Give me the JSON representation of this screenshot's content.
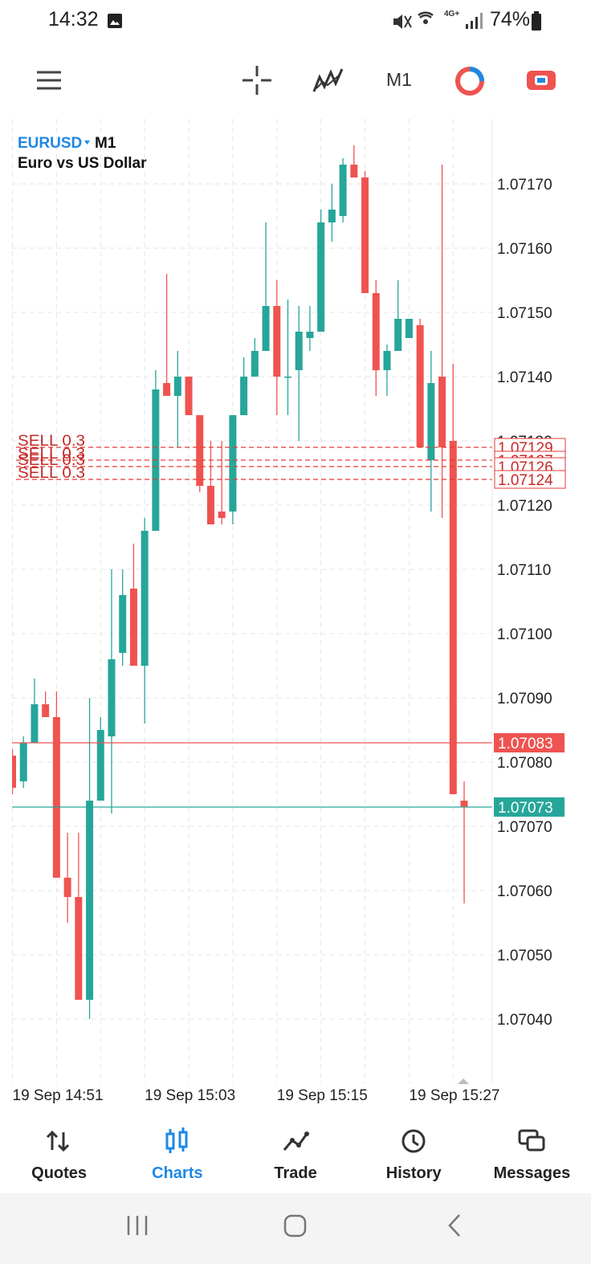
{
  "status_bar": {
    "time": "14:32",
    "network": "4G+",
    "battery": "74%"
  },
  "toolbar": {
    "timeframe": "M1"
  },
  "chart_data": {
    "type": "candlestick",
    "symbol": "EURUSD",
    "timeframe": "M1",
    "description": "Euro vs US Dollar",
    "categories": [
      "19 Sep 14:51",
      null,
      null,
      null,
      null,
      null,
      null,
      null,
      null,
      null,
      null,
      null,
      "19 Sep 15:03",
      null,
      null,
      null,
      null,
      null,
      null,
      null,
      null,
      null,
      null,
      null,
      "19 Sep 15:15",
      null,
      null,
      null,
      null,
      null,
      null,
      null,
      null,
      null,
      null,
      null,
      "19 Sep 15:27",
      null,
      null,
      null,
      null,
      null
    ],
    "open": [
      1.07081,
      1.07077,
      1.07083,
      1.07089,
      1.07087,
      1.07062,
      1.07059,
      1.07043,
      1.07074,
      1.07084,
      1.07097,
      1.07107,
      1.07095,
      1.07116,
      1.07139,
      1.07137,
      1.0714,
      1.07134,
      1.07123,
      1.07119,
      1.07119,
      1.07134,
      1.0714,
      1.07144,
      1.07151,
      1.0714,
      1.07141,
      1.07146,
      1.07147,
      1.07164,
      1.07165,
      1.07173,
      1.07171,
      1.07153,
      1.07141,
      1.07144,
      1.07146,
      1.07148,
      1.07127,
      1.0714,
      1.0713,
      1.07074
    ],
    "high": [
      1.07082,
      1.07084,
      1.07093,
      1.07091,
      1.07091,
      1.07069,
      1.07069,
      1.0709,
      1.07087,
      1.0711,
      1.0711,
      1.07114,
      1.07118,
      1.07141,
      1.07156,
      1.07144,
      1.0714,
      1.07134,
      1.0713,
      1.0713,
      1.07134,
      1.07143,
      1.07146,
      1.07164,
      1.07155,
      1.07152,
      1.07151,
      1.07151,
      1.07166,
      1.0717,
      1.07174,
      1.07176,
      1.07172,
      1.07155,
      1.07145,
      1.07155,
      1.07149,
      1.07149,
      1.07144,
      1.07173,
      1.07142,
      1.07077
    ],
    "low": [
      1.07075,
      1.07076,
      1.07083,
      1.07087,
      1.07062,
      1.07055,
      1.07043,
      1.0704,
      1.07074,
      1.07072,
      1.07095,
      1.07095,
      1.07086,
      1.07116,
      1.07137,
      1.07129,
      1.07134,
      1.07122,
      1.07117,
      1.07117,
      1.07117,
      1.07134,
      1.0714,
      1.07144,
      1.07134,
      1.07134,
      1.0713,
      1.07144,
      1.07147,
      1.07161,
      1.07164,
      1.07171,
      1.07153,
      1.07137,
      1.07137,
      1.07144,
      1.07146,
      1.07129,
      1.07119,
      1.07118,
      1.07075,
      1.07058
    ],
    "close": [
      1.07076,
      1.07083,
      1.07089,
      1.07087,
      1.07062,
      1.07059,
      1.07043,
      1.07074,
      1.07085,
      1.07096,
      1.07106,
      1.07095,
      1.07116,
      1.07138,
      1.07137,
      1.0714,
      1.07134,
      1.07123,
      1.07117,
      1.07118,
      1.07134,
      1.0714,
      1.07144,
      1.07151,
      1.0714,
      1.0714,
      1.07147,
      1.07147,
      1.07164,
      1.07166,
      1.07173,
      1.07171,
      1.07153,
      1.07141,
      1.07144,
      1.07149,
      1.07149,
      1.07129,
      1.07139,
      1.07129,
      1.07075,
      1.07073
    ],
    "up_color": "#26a69a",
    "down_color": "#ef5350",
    "ylim": [
      1.0703,
      1.0718
    ],
    "yticks": [
      {
        "value": 1.0704,
        "label": "1.07040"
      },
      {
        "value": 1.0705,
        "label": "1.07050"
      },
      {
        "value": 1.0706,
        "label": "1.07060"
      },
      {
        "value": 1.0707,
        "label": "1.07070"
      },
      {
        "value": 1.0708,
        "label": "1.07080"
      },
      {
        "value": 1.0709,
        "label": "1.07090"
      },
      {
        "value": 1.071,
        "label": "1.07100"
      },
      {
        "value": 1.0711,
        "label": "1.07110"
      },
      {
        "value": 1.0712,
        "label": "1.07120"
      },
      {
        "value": 1.0713,
        "label": "1.07130"
      },
      {
        "value": 1.0714,
        "label": "1.07140"
      },
      {
        "value": 1.0715,
        "label": "1.07150"
      },
      {
        "value": 1.0716,
        "label": "1.07160"
      },
      {
        "value": 1.0717,
        "label": "1.07170"
      }
    ],
    "grid": true,
    "orders": [
      {
        "label": "SELL 0.3",
        "price": 1.07129
      },
      {
        "label": "SELL 0.3",
        "price": 1.07127
      },
      {
        "label": "SELL 0.3",
        "price": 1.07126
      },
      {
        "label": "SELL 0.3",
        "price": 1.07124
      }
    ],
    "ask_line": {
      "value": 1.07083,
      "color": "#ef5350"
    },
    "bid_line": {
      "value": 1.07073,
      "color": "#26a69a"
    }
  },
  "nav": {
    "items": [
      "Quotes",
      "Charts",
      "Trade",
      "History",
      "Messages"
    ],
    "active": 1
  }
}
